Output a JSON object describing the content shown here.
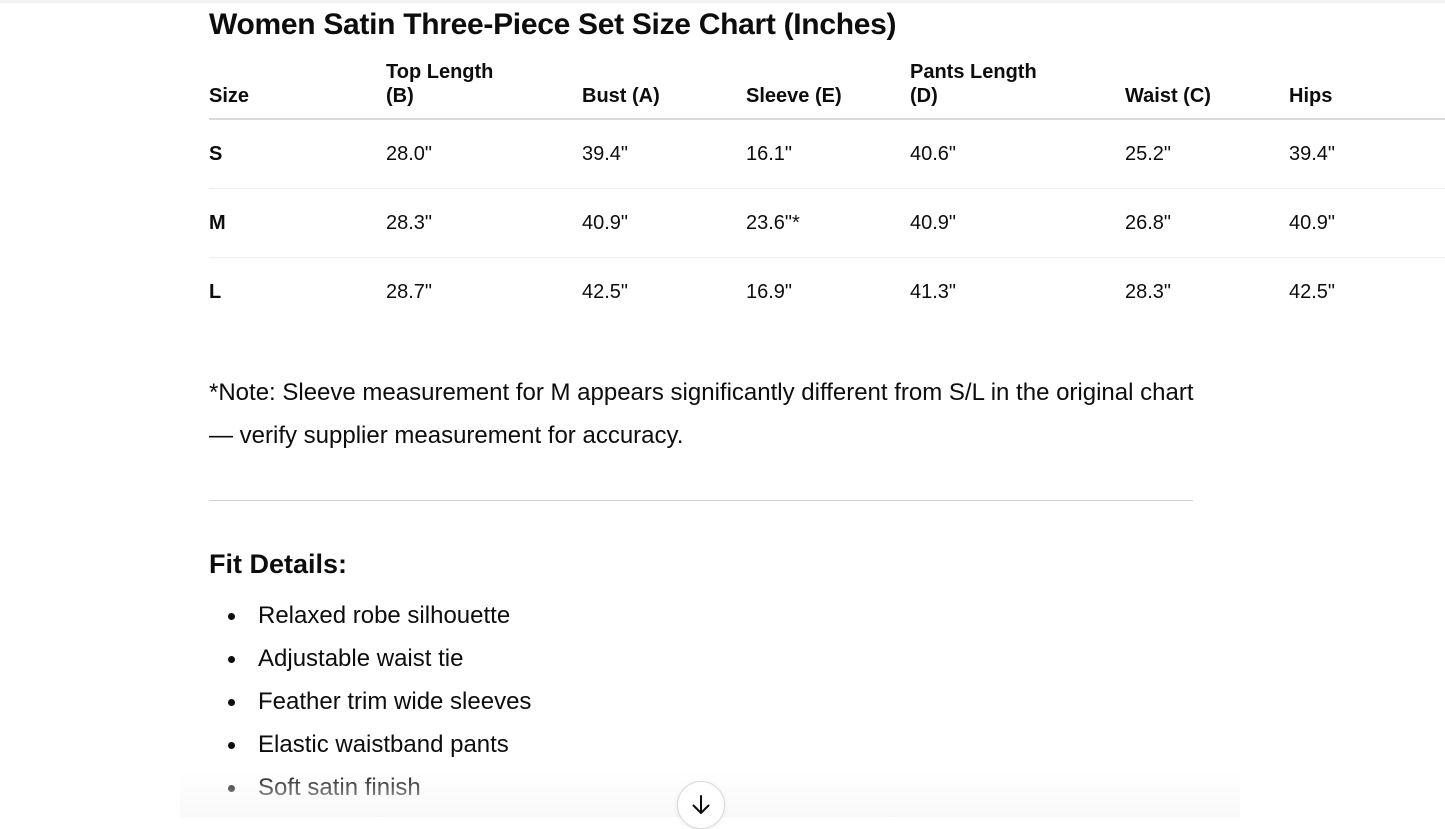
{
  "title": "Women Satin Three-Piece Set Size Chart (Inches)",
  "table": {
    "headers": [
      "Size",
      "Top Length (B)",
      "Bust (A)",
      "Sleeve (E)",
      "Pants Length (D)",
      "Waist (C)",
      "Hips"
    ],
    "rows": [
      [
        "S",
        "28.0\"",
        "39.4\"",
        "16.1\"",
        "40.6\"",
        "25.2\"",
        "39.4\""
      ],
      [
        "M",
        "28.3\"",
        "40.9\"",
        "23.6\"*",
        "40.9\"",
        "26.8\"",
        "40.9\""
      ],
      [
        "L",
        "28.7\"",
        "42.5\"",
        "16.9\"",
        "41.3\"",
        "28.3\"",
        "42.5\""
      ]
    ]
  },
  "note": "*Note: Sleeve measurement for M appears significantly different from S/L in the original chart — verify supplier measurement for accuracy.",
  "fit": {
    "heading": "Fit Details:",
    "items": [
      "Relaxed robe silhouette",
      "Adjustable waist tie",
      "Feather trim wide sleeves",
      "Elastic waistband pants",
      "Soft satin finish"
    ]
  },
  "scroll_button": {
    "icon": "arrow-down-icon"
  }
}
